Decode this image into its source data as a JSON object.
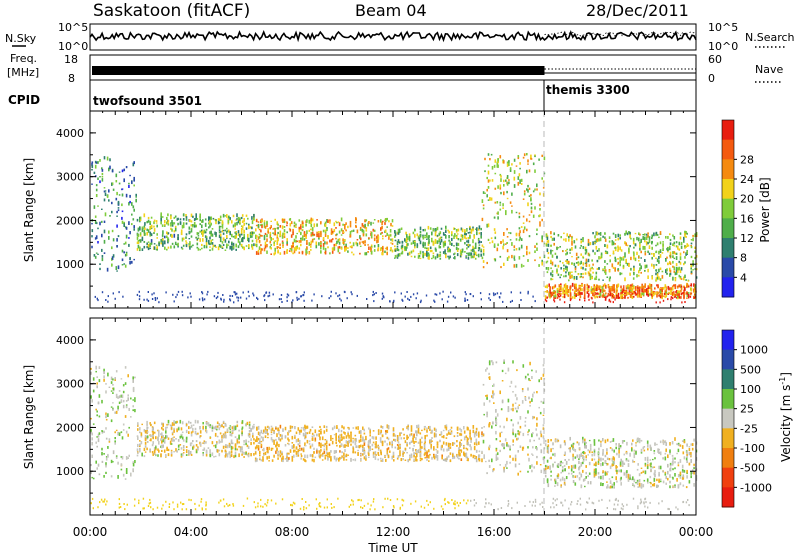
{
  "header": {
    "station": "Saskatoon (fitACF)",
    "beam": "Beam 04",
    "date": "28/Dec/2011"
  },
  "noise_panel": {
    "left_label": "N.Sky",
    "right_label": "N.Search",
    "ticks_left": [
      "10^5",
      "10^0"
    ],
    "ticks_right": [
      "10^5",
      "10^0"
    ]
  },
  "freq_panel": {
    "label_line1": "Freq.",
    "label_line2": "[MHz]",
    "ticks_left": [
      "18",
      "8"
    ],
    "right_label": "Nave",
    "ticks_right": [
      "60",
      "0"
    ]
  },
  "cpid_panel": {
    "label": "CPID",
    "modes": [
      {
        "name": "twofsound 3501",
        "start_hour": 0,
        "end_hour": 18
      },
      {
        "name": "themis 3300",
        "start_hour": 18,
        "end_hour": 24
      }
    ]
  },
  "colors": {
    "power_scale": [
      "#2222ee",
      "#2a4aa8",
      "#2f7f6f",
      "#4fae4a",
      "#7fcc3a",
      "#f2d21a",
      "#f58a10",
      "#f45a10",
      "#e81d10"
    ],
    "velocity_scale": [
      "#2222ee",
      "#2a4aa8",
      "#2f7f6f",
      "#6ac23e",
      "#c8c8c0",
      "#f0b020",
      "#f07f10",
      "#f04010",
      "#e81d10"
    ],
    "gray_scatter": "#c0c0b8"
  },
  "chart_data": [
    {
      "type": "heatmap",
      "title": "Power",
      "xlabel": "Time UT",
      "ylabel": "Slant Range [km]",
      "x_range_hours": [
        0,
        24
      ],
      "ylim": [
        0,
        4500
      ],
      "x_ticks": [
        "00:00",
        "04:00",
        "08:00",
        "12:00",
        "16:00",
        "20:00",
        "00:00"
      ],
      "y_ticks": [
        1000,
        2000,
        3000,
        4000
      ],
      "colorbar": {
        "label": "Power [dB]",
        "ticks": [
          4,
          8,
          12,
          16,
          20,
          24,
          28
        ]
      },
      "echo_bands": [
        {
          "t_start": 0.0,
          "t_end": 1.8,
          "range_low": 800,
          "range_high": 3400,
          "mean_power_db": 10
        },
        {
          "t_start": 1.8,
          "t_end": 6.5,
          "range_low": 1300,
          "range_high": 2100,
          "mean_power_db": 14
        },
        {
          "t_start": 6.5,
          "t_end": 12.0,
          "range_low": 1200,
          "range_high": 2000,
          "mean_power_db": 20
        },
        {
          "t_start": 12.0,
          "t_end": 15.5,
          "range_low": 1100,
          "range_high": 1800,
          "mean_power_db": 14
        },
        {
          "t_start": 15.5,
          "t_end": 18.0,
          "range_low": 900,
          "range_high": 3500,
          "mean_power_db": 18
        },
        {
          "t_start": 18.0,
          "t_end": 24.0,
          "range_low": 600,
          "range_high": 1700,
          "mean_power_db": 16
        },
        {
          "t_start": 18.0,
          "t_end": 24.0,
          "range_low": 200,
          "range_high": 500,
          "mean_power_db": 24
        }
      ]
    },
    {
      "type": "heatmap",
      "title": "Velocity",
      "xlabel": "Time UT",
      "ylabel": "Slant Range [km]",
      "x_range_hours": [
        0,
        24
      ],
      "ylim": [
        0,
        4500
      ],
      "x_ticks": [
        "00:00",
        "04:00",
        "08:00",
        "12:00",
        "16:00",
        "20:00",
        "00:00"
      ],
      "y_ticks": [
        1000,
        2000,
        3000,
        4000
      ],
      "colorbar": {
        "label": "Velocity [m s",
        "label_exp": "-1",
        "label_end": "]",
        "ticks": [
          "1000",
          "500",
          "100",
          "25",
          "-25",
          "-100",
          "-500",
          "-1000"
        ]
      },
      "echo_bands": [
        {
          "t_start": 0.0,
          "t_end": 1.8,
          "range_low": 800,
          "range_high": 3400,
          "mean_velocity": 50
        },
        {
          "t_start": 1.8,
          "t_end": 6.5,
          "range_low": 1300,
          "range_high": 2100,
          "mean_velocity": -50
        },
        {
          "t_start": 6.5,
          "t_end": 15.5,
          "range_low": 1200,
          "range_high": 2000,
          "mean_velocity": -150
        },
        {
          "t_start": 15.5,
          "t_end": 18.0,
          "range_low": 900,
          "range_high": 3500,
          "mean_velocity": 0
        },
        {
          "t_start": 18.0,
          "t_end": 24.0,
          "range_low": 600,
          "range_high": 1700,
          "mean_velocity": 0
        }
      ]
    }
  ]
}
